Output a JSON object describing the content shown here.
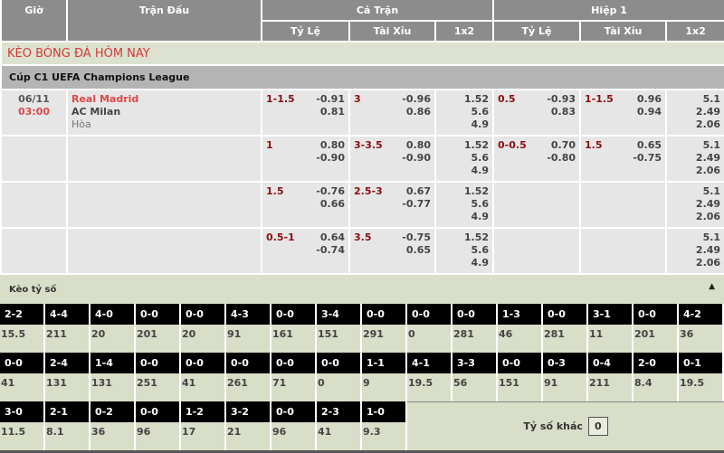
{
  "header": {
    "gio": "Giờ",
    "tran_dau": "Trận Đấu",
    "ca_tran": "Cả Trận",
    "hiep1": "Hiệp 1",
    "ty_le": "Tỷ Lệ",
    "tai_xiu": "Tài Xỉu",
    "x12": "1x2"
  },
  "title": "KÈO BÓNG ĐÁ HÔM NAY",
  "league": "Cúp C1 UEFA Champions League",
  "match": {
    "date": "06/11",
    "time": "03:00",
    "home": "Real Madrid",
    "away": "AC Milan",
    "draw": "Hòa"
  },
  "rows": [
    {
      "ft_hc": "1-1.5",
      "ft_hc_o": [
        "-0.91",
        "0.81"
      ],
      "ft_ou": "3",
      "ft_ou_o": [
        "-0.96",
        "0.86"
      ],
      "ft_1x2": [
        "1.52",
        "5.6",
        "4.9"
      ],
      "h1_hc": "0.5",
      "h1_hc_o": [
        "-0.93",
        "0.83"
      ],
      "h1_ou": "1-1.5",
      "h1_ou_o": [
        "0.96",
        "0.94"
      ],
      "h1_1x2": [
        "5.1",
        "2.49",
        "2.06"
      ]
    },
    {
      "ft_hc": "1",
      "ft_hc_o": [
        "0.80",
        "-0.90"
      ],
      "ft_ou": "3-3.5",
      "ft_ou_o": [
        "0.80",
        "-0.90"
      ],
      "ft_1x2": [
        "1.52",
        "5.6",
        "4.9"
      ],
      "h1_hc": "0-0.5",
      "h1_hc_o": [
        "0.70",
        "-0.80"
      ],
      "h1_ou": "1.5",
      "h1_ou_o": [
        "0.65",
        "-0.75"
      ],
      "h1_1x2": [
        "5.1",
        "2.49",
        "2.06"
      ]
    },
    {
      "ft_hc": "1.5",
      "ft_hc_o": [
        "-0.76",
        "0.66"
      ],
      "ft_ou": "2.5-3",
      "ft_ou_o": [
        "0.67",
        "-0.77"
      ],
      "ft_1x2": [
        "1.52",
        "5.6",
        "4.9"
      ],
      "h1_hc": "",
      "h1_hc_o": [
        "",
        ""
      ],
      "h1_ou": "",
      "h1_ou_o": [
        "",
        ""
      ],
      "h1_1x2": [
        "5.1",
        "2.49",
        "2.06"
      ]
    },
    {
      "ft_hc": "0.5-1",
      "ft_hc_o": [
        "0.64",
        "-0.74"
      ],
      "ft_ou": "3.5",
      "ft_ou_o": [
        "-0.75",
        "0.65"
      ],
      "ft_1x2": [
        "1.52",
        "5.6",
        "4.9"
      ],
      "h1_hc": "",
      "h1_hc_o": [
        "",
        ""
      ],
      "h1_ou": "",
      "h1_ou_o": [
        "",
        ""
      ],
      "h1_1x2": [
        "5.1",
        "2.49",
        "2.06"
      ]
    }
  ],
  "correct_score": {
    "label": "Kèo tỷ số",
    "collapse_icon": "triangle-up-icon",
    "rows": [
      [
        [
          "2-2",
          "15.5"
        ],
        [
          "4-4",
          "211"
        ],
        [
          "4-0",
          "20"
        ],
        [
          "0-0",
          "201"
        ],
        [
          "0-0",
          "20"
        ],
        [
          "4-3",
          "91"
        ],
        [
          "0-0",
          "161"
        ],
        [
          "3-4",
          "151"
        ],
        [
          "0-0",
          "291"
        ],
        [
          "0-0",
          "0"
        ],
        [
          "0-0",
          "281"
        ],
        [
          "1-3",
          "46"
        ],
        [
          "0-0",
          "281"
        ],
        [
          "3-1",
          "11"
        ],
        [
          "0-0",
          "201"
        ],
        [
          "4-2",
          "36"
        ]
      ],
      [
        [
          "0-0",
          "41"
        ],
        [
          "2-4",
          "131"
        ],
        [
          "1-4",
          "131"
        ],
        [
          "0-0",
          "251"
        ],
        [
          "0-0",
          "41"
        ],
        [
          "0-0",
          "261"
        ],
        [
          "0-0",
          "71"
        ],
        [
          "0-0",
          "0"
        ],
        [
          "1-1",
          "9"
        ],
        [
          "4-1",
          "19.5"
        ],
        [
          "3-3",
          "56"
        ],
        [
          "0-0",
          "151"
        ],
        [
          "0-3",
          "91"
        ],
        [
          "0-4",
          "211"
        ],
        [
          "2-0",
          "8.4"
        ],
        [
          "0-1",
          "19.5"
        ]
      ],
      [
        [
          "3-0",
          "11.5"
        ],
        [
          "2-1",
          "8.1"
        ],
        [
          "0-2",
          "36"
        ],
        [
          "0-0",
          "96"
        ],
        [
          "1-2",
          "17"
        ],
        [
          "3-2",
          "21"
        ],
        [
          "0-0",
          "96"
        ],
        [
          "2-3",
          "41"
        ],
        [
          "1-0",
          "9.3"
        ]
      ]
    ],
    "other_label": "Tỷ số khác",
    "other_value": "0"
  }
}
